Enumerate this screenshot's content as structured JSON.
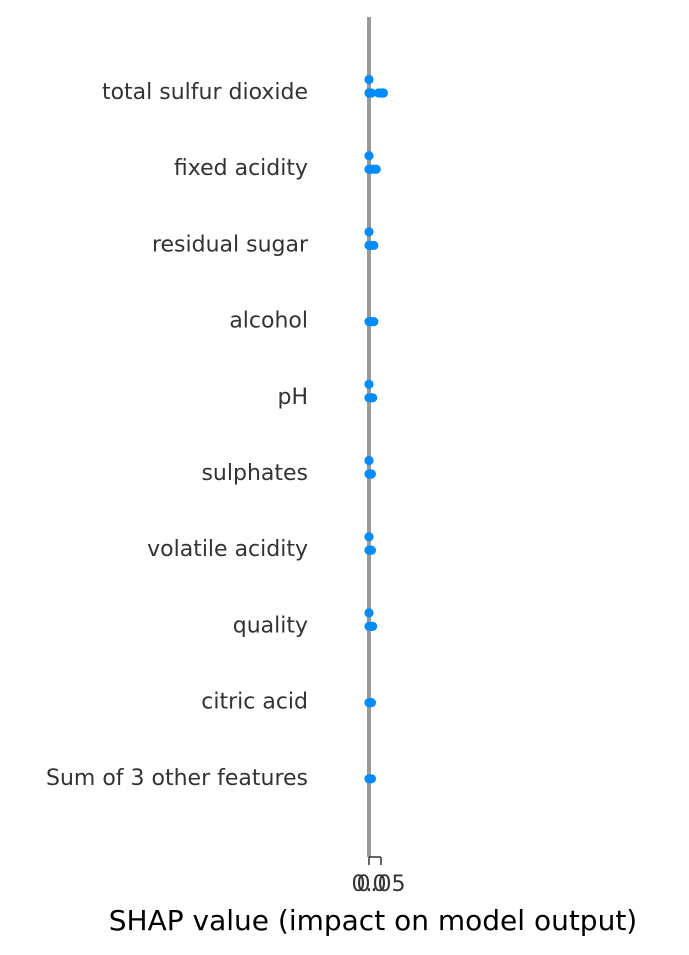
{
  "chart_data": {
    "type": "scatter",
    "subtype": "shap-beeswarm",
    "title": "",
    "xlabel": "SHAP value (impact on model output)",
    "ylabel": "",
    "xlim": [
      -0.03,
      0.16
    ],
    "xticks": [
      {
        "value": 0.0,
        "label": "0.0"
      },
      {
        "value": 0.05,
        "label": "0.05"
      }
    ],
    "grid": false,
    "legend": "none",
    "point_color": "#008bfb",
    "zero_line_color": "#999999",
    "features": [
      {
        "name": "total sulfur dioxide",
        "points": [
          [
            0.0,
            1
          ],
          [
            0.0,
            0
          ],
          [
            0.01,
            0
          ],
          [
            0.04,
            0
          ],
          [
            0.05,
            0
          ],
          [
            0.055,
            0
          ],
          [
            0.06,
            0
          ]
        ]
      },
      {
        "name": "fixed acidity",
        "points": [
          [
            0.0,
            1
          ],
          [
            0.0,
            0
          ],
          [
            0.01,
            0
          ],
          [
            0.02,
            0
          ],
          [
            0.03,
            0
          ]
        ]
      },
      {
        "name": "residual sugar",
        "points": [
          [
            0.0,
            1
          ],
          [
            0.0,
            0
          ],
          [
            0.01,
            0
          ],
          [
            0.02,
            0
          ]
        ]
      },
      {
        "name": "alcohol",
        "points": [
          [
            0.0,
            0
          ],
          [
            0.01,
            0
          ],
          [
            0.02,
            0
          ]
        ]
      },
      {
        "name": "pH",
        "points": [
          [
            0.0,
            1
          ],
          [
            0.0,
            0
          ],
          [
            0.01,
            0
          ],
          [
            0.015,
            0
          ]
        ]
      },
      {
        "name": "sulphates",
        "points": [
          [
            0.0,
            1
          ],
          [
            0.0,
            0
          ],
          [
            0.01,
            0
          ]
        ]
      },
      {
        "name": "volatile acidity",
        "points": [
          [
            0.0,
            1
          ],
          [
            0.0,
            0
          ],
          [
            0.01,
            0
          ]
        ]
      },
      {
        "name": "quality",
        "points": [
          [
            0.0,
            1
          ],
          [
            0.0,
            0
          ],
          [
            0.01,
            0
          ],
          [
            0.015,
            0
          ]
        ]
      },
      {
        "name": "citric acid",
        "points": [
          [
            0.0,
            0
          ],
          [
            0.01,
            0
          ]
        ]
      },
      {
        "name": "Sum of 3 other features",
        "points": [
          [
            0.0,
            0
          ],
          [
            0.01,
            0
          ]
        ]
      }
    ]
  }
}
